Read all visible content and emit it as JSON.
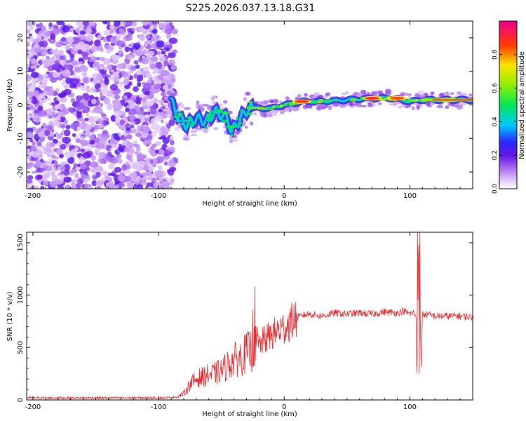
{
  "figure": {
    "title": "S225.2026.037.13.18.G31"
  },
  "chart_data": [
    {
      "type": "heatmap",
      "title": "S225.2026.037.13.18.G31",
      "xlabel": "Height of straight line (km)",
      "ylabel": "Frequency (Hz)",
      "xlim": [
        -205,
        150
      ],
      "ylim": [
        -25,
        25
      ],
      "xticks": [
        -200,
        -100,
        0,
        100
      ],
      "yticks": [
        -20,
        -10,
        0,
        10,
        20
      ],
      "noise_region": {
        "x_from": -205,
        "x_to": -87,
        "freq_from": -25,
        "freq_to": 25
      },
      "ridge": [
        {
          "x": -90,
          "freq": 1
        },
        {
          "x": -85,
          "freq": -3
        },
        {
          "x": -78,
          "freq": -6
        },
        {
          "x": -70,
          "freq": -4
        },
        {
          "x": -62,
          "freq": -5
        },
        {
          "x": -55,
          "freq": -2
        },
        {
          "x": -45,
          "freq": -4
        },
        {
          "x": -42,
          "freq": -8
        },
        {
          "x": -35,
          "freq": -4
        },
        {
          "x": -28,
          "freq": -1
        },
        {
          "x": -20,
          "freq": -1
        },
        {
          "x": -10,
          "freq": -1
        },
        {
          "x": 0,
          "freq": 0
        },
        {
          "x": 15,
          "freq": 1
        },
        {
          "x": 30,
          "freq": 1
        },
        {
          "x": 50,
          "freq": 1.5
        },
        {
          "x": 70,
          "freq": 2
        },
        {
          "x": 85,
          "freq": 2
        },
        {
          "x": 100,
          "freq": 1
        },
        {
          "x": 110,
          "freq": 1.5
        },
        {
          "x": 130,
          "freq": 1.5
        },
        {
          "x": 150,
          "freq": 1.5
        }
      ],
      "hot_spots": [
        {
          "x": 14,
          "freq": 1,
          "amp": 1.0
        },
        {
          "x": 70,
          "freq": 2,
          "amp": 1.0
        },
        {
          "x": 90,
          "freq": 2,
          "amp": 0.95
        },
        {
          "x": 130,
          "freq": 1.5,
          "amp": 1.0
        }
      ],
      "colorbar": {
        "label": "Normalized spectral amplitude",
        "range": [
          0,
          1
        ],
        "ticks": [
          0.0,
          0.2,
          0.4,
          0.6,
          0.8
        ],
        "tick_labels": [
          "0.0",
          "0.2",
          "0.4",
          "0.6",
          "0.8"
        ]
      }
    },
    {
      "type": "line",
      "xlabel": "Height of straight line (km)",
      "ylabel": "SNR (10 * v/v)",
      "xlim": [
        -205,
        150
      ],
      "ylim": [
        0,
        1600
      ],
      "xticks": [
        -200,
        -100,
        0,
        100
      ],
      "yticks": [
        0,
        500,
        1000,
        1500
      ],
      "color": "#e8262a",
      "series": [
        {
          "name": "SNR",
          "x": [
            -205,
            -190,
            -170,
            -150,
            -130,
            -110,
            -95,
            -85,
            -80,
            -75,
            -70,
            -65,
            -60,
            -55,
            -50,
            -45,
            -40,
            -35,
            -30,
            -25,
            -20,
            -15,
            -10,
            -5,
            0,
            5,
            10,
            15,
            20,
            30,
            40,
            50,
            60,
            70,
            80,
            90,
            95,
            100,
            103,
            105,
            106,
            107,
            108,
            109,
            110,
            115,
            120,
            130,
            140,
            150
          ],
          "values": [
            20,
            20,
            20,
            20,
            20,
            20,
            20,
            30,
            60,
            150,
            200,
            220,
            240,
            250,
            280,
            330,
            380,
            400,
            450,
            480,
            520,
            580,
            620,
            660,
            690,
            740,
            780,
            810,
            820,
            800,
            830,
            820,
            830,
            820,
            840,
            830,
            850,
            820,
            830,
            800,
            300,
            1600,
            1000,
            280,
            820,
            810,
            800,
            800,
            800,
            790
          ]
        }
      ],
      "spikes": [
        {
          "x": -23.5,
          "value": 1080
        },
        {
          "x": -25,
          "value": 860
        },
        {
          "x": 106,
          "value": 1620
        },
        {
          "x": 108,
          "value": 1600
        },
        {
          "x": 105.5,
          "value": 260
        },
        {
          "x": 107.5,
          "value": 250
        }
      ]
    }
  ]
}
